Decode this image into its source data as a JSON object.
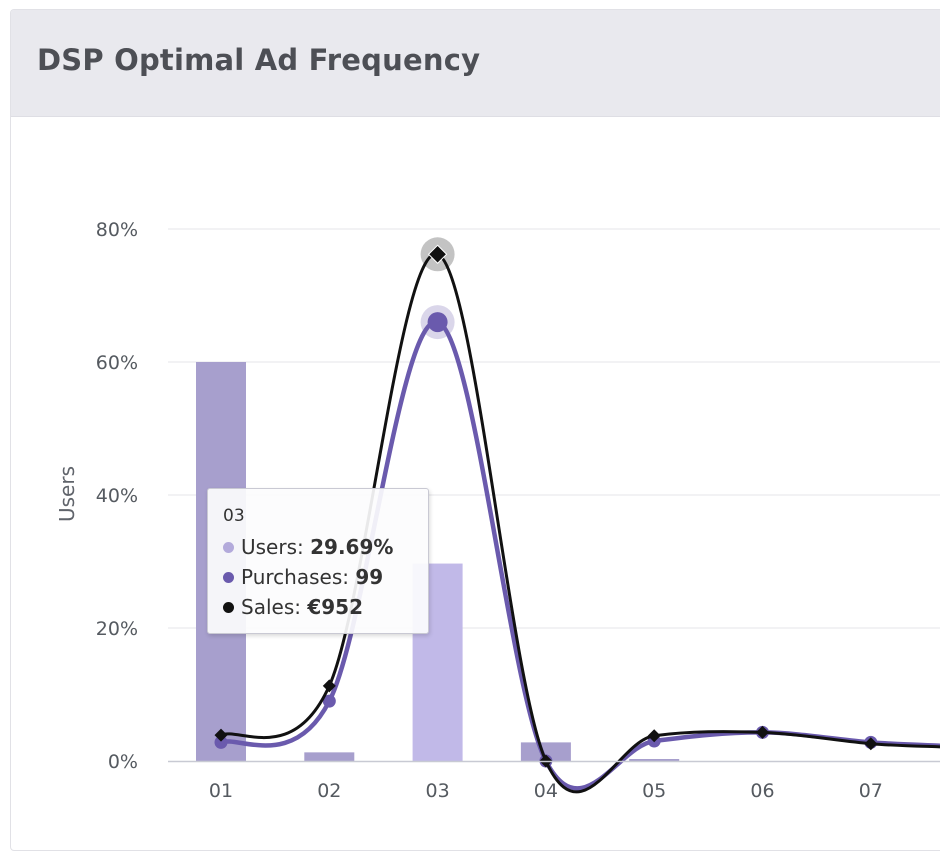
{
  "title": "DSP Optimal Ad Frequency",
  "chart_data": {
    "type": "bar",
    "categories": [
      "01",
      "02",
      "03",
      "04",
      "05",
      "06",
      "07"
    ],
    "yaxis": {
      "label": "Users",
      "ticks": [
        "0%",
        "20%",
        "40%",
        "60%",
        "80%"
      ],
      "tick_values": [
        0,
        20,
        40,
        60,
        80
      ],
      "ylim": [
        0,
        80
      ]
    },
    "series": [
      {
        "name": "Users",
        "type": "bar",
        "values": [
          60,
          1.3,
          29.69,
          2.8,
          0.3,
          0,
          0
        ]
      },
      {
        "name": "Purchases",
        "type": "line",
        "values": [
          2.8,
          9,
          66,
          0,
          3,
          4.3,
          2.8
        ]
      },
      {
        "name": "Sales",
        "type": "line",
        "values": [
          3.9,
          11.3,
          76.2,
          0,
          3.8,
          4.3,
          2.6
        ]
      }
    ],
    "highlighted_index": 2
  },
  "tooltip": {
    "header": "03",
    "rows": [
      {
        "name": "Users",
        "sep": ": ",
        "value": "29.69%"
      },
      {
        "name": "Purchases",
        "sep": ": ",
        "value": "99"
      },
      {
        "name": "Sales",
        "sep": ": ",
        "value": "€952"
      }
    ]
  },
  "colors": {
    "bar_default": "#a79fcd",
    "bar_highlight": "#c1b9e8",
    "purchases": "#6a5aad",
    "sales": "#111111",
    "grid": "#e4e4e8",
    "tooltip_users": "#b3aadb",
    "tooltip_purchases": "#6a5aad",
    "tooltip_sales": "#111111"
  }
}
